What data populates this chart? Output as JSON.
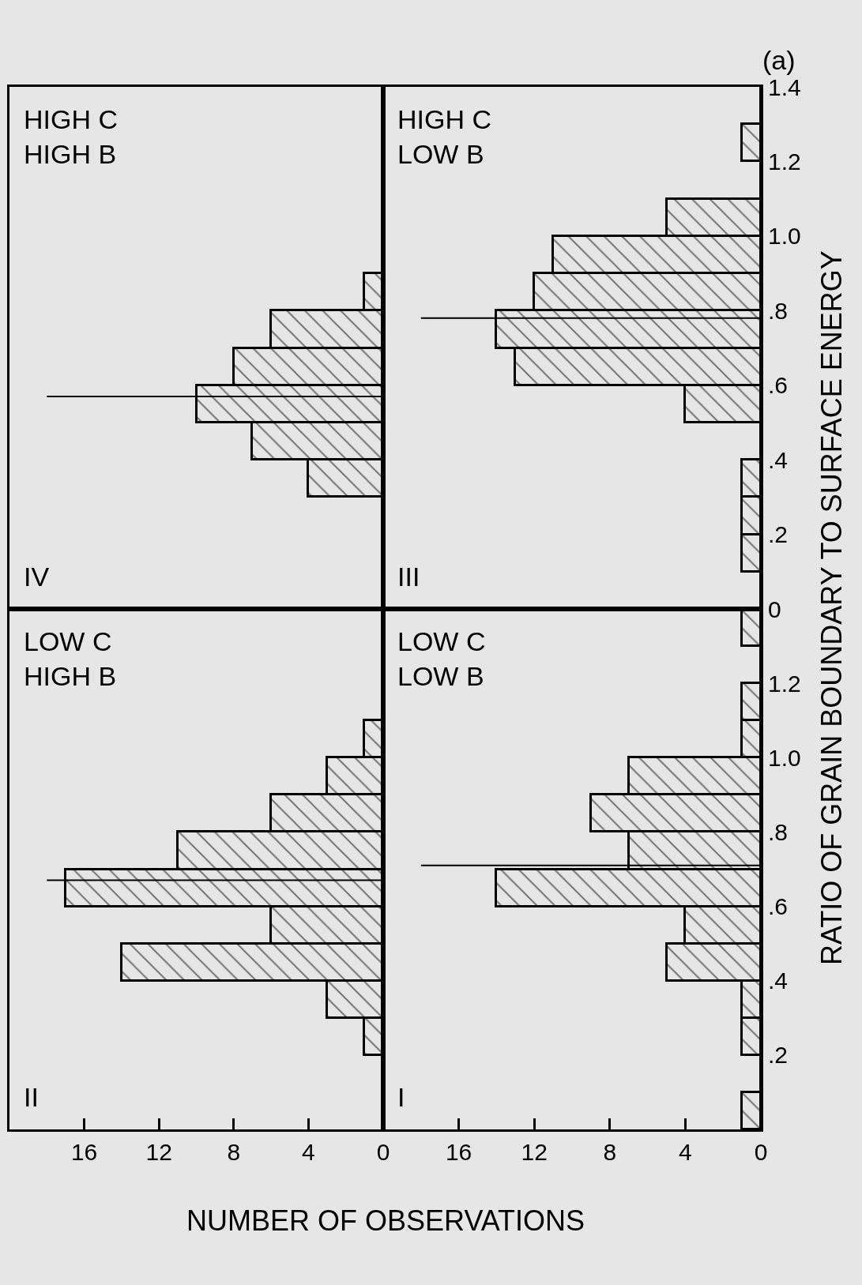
{
  "chart_data": [
    {
      "type": "histogram",
      "orientation": "horizontal",
      "color": "#000000",
      "bins": [
        0,
        0.1,
        0.2,
        0.3,
        0.4,
        0.5,
        0.6,
        0.7,
        0.8,
        0.9,
        1.0,
        1.1,
        1.2,
        1.3,
        1.4
      ],
      "values": [
        0,
        0,
        0,
        4,
        7,
        10,
        8,
        6,
        1,
        0,
        0,
        0,
        0,
        0
      ],
      "xlim": [
        20,
        0
      ],
      "ylim": [
        0,
        1.4
      ],
      "tick_labels": false,
      "ref_lines": [
        {
          "axis": "y",
          "value": 0.57
        }
      ],
      "annotations": [
        "IV",
        "HIGH C\nHIGH B"
      ]
    },
    {
      "type": "histogram",
      "orientation": "horizontal",
      "color": "#000000",
      "bins": [
        0,
        0.1,
        0.2,
        0.3,
        0.4,
        0.5,
        0.6,
        0.7,
        0.8,
        0.9,
        1.0,
        1.1,
        1.2,
        1.3,
        1.4
      ],
      "values": [
        0,
        1,
        1,
        1,
        0,
        4,
        13,
        14,
        12,
        11,
        5,
        0,
        1,
        0
      ],
      "xlim": [
        20,
        0
      ],
      "ylim": [
        0,
        1.4
      ],
      "yticks": [
        0,
        {
          "value": 0.2,
          "label": ".2"
        },
        {
          "value": 0.4,
          "label": ".4"
        },
        {
          "value": 0.6,
          "label": ".6"
        },
        {
          "value": 0.8,
          "label": ".8"
        },
        {
          "value": 1.0,
          "label": "1.0"
        },
        1.2,
        1.4
      ],
      "tick_labels": "y",
      "ref_lines": [
        {
          "axis": "y",
          "value": 0.78
        }
      ],
      "annotations": [
        "III",
        "HIGH C\nLOW B",
        "(a)"
      ]
    },
    {
      "type": "histogram",
      "orientation": "horizontal",
      "color": "#000000",
      "bins": [
        0,
        0.1,
        0.2,
        0.3,
        0.4,
        0.5,
        0.6,
        0.7,
        0.8,
        0.9,
        1.0,
        1.1,
        1.2,
        1.3,
        1.4
      ],
      "values": [
        0,
        0,
        1,
        3,
        14,
        6,
        17,
        11,
        6,
        3,
        1,
        0,
        0,
        0
      ],
      "xlim": [
        20,
        0
      ],
      "xticks": [
        16,
        12,
        8,
        4,
        0
      ],
      "ylim": [
        0,
        1.4
      ],
      "tick_labels": "x",
      "ref_lines": [
        {
          "axis": "y",
          "value": 0.67
        }
      ],
      "annotations": [
        "II",
        "LOW C\nHIGH B"
      ]
    },
    {
      "type": "histogram",
      "orientation": "horizontal",
      "color": "#000000",
      "bins": [
        0,
        0.1,
        0.2,
        0.3,
        0.4,
        0.5,
        0.6,
        0.7,
        0.8,
        0.9,
        1.0,
        1.1,
        1.2,
        1.3,
        1.4
      ],
      "values": [
        1,
        0,
        1,
        1,
        5,
        4,
        14,
        7,
        9,
        7,
        1,
        1,
        0,
        1
      ],
      "xlim": [
        20,
        0
      ],
      "xticks": [
        16,
        12,
        8,
        4,
        0
      ],
      "ylim": [
        0,
        1.4
      ],
      "yticks": [
        {
          "value": 0.2,
          "label": ".2"
        },
        {
          "value": 0.4,
          "label": ".4"
        },
        {
          "value": 0.6,
          "label": ".6"
        },
        {
          "value": 0.8,
          "label": ".8"
        },
        {
          "value": 1.0,
          "label": "1.0"
        },
        1.2
      ],
      "ref_lines": [
        {
          "axis": "y",
          "value": 0.71
        }
      ],
      "xlabel": "NUMBER OF OBSERVATIONS",
      "ylabel": "RATIO OF GRAIN BOUNDARY TO SURFACE ENERGY",
      "annotations": [
        "I",
        "LOW C\nLOW B"
      ]
    }
  ]
}
